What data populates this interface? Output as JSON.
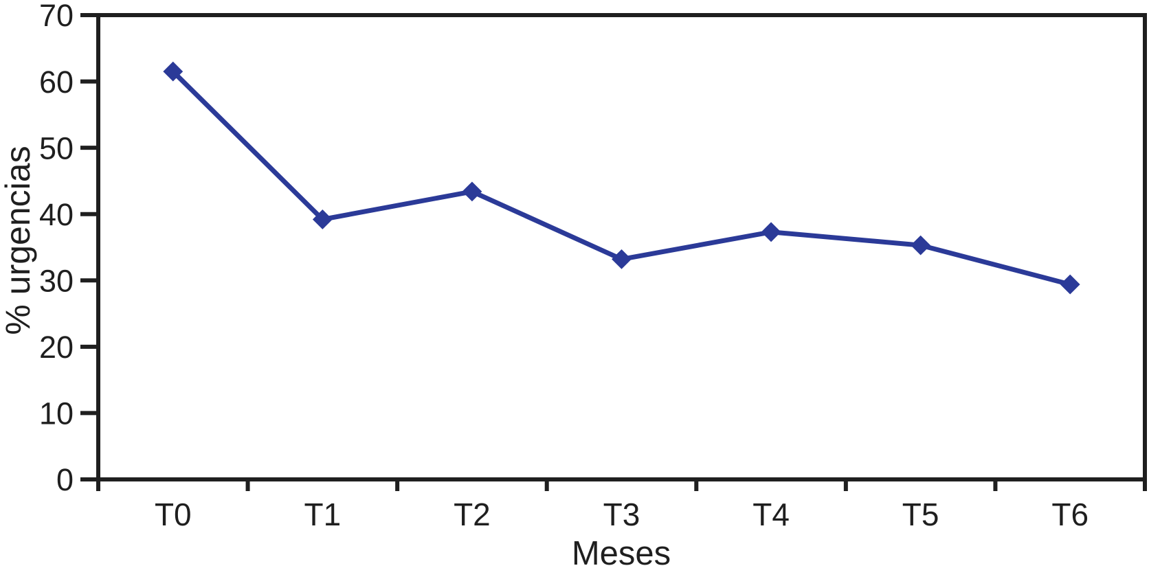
{
  "chart_data": {
    "type": "line",
    "categories": [
      "T0",
      "T1",
      "T2",
      "T3",
      "T4",
      "T5",
      "T6"
    ],
    "values": [
      61.5,
      39.2,
      43.4,
      33.2,
      37.3,
      35.3,
      29.4
    ],
    "series": [
      {
        "name": "% urgencias",
        "values": [
          61.5,
          39.2,
          43.4,
          33.2,
          37.3,
          35.3,
          29.4
        ]
      }
    ],
    "title": "",
    "xlabel": "Meses",
    "ylabel": "% urgencias",
    "ylim": [
      0,
      70
    ],
    "y_tick_labels": [
      "0",
      "10",
      "20",
      "30",
      "40",
      "50",
      "60",
      "70"
    ],
    "y_tick_step": 10,
    "grid": "off",
    "legend_position": "none",
    "marker": "diamond",
    "line_color": "#2b3a98",
    "axis_color": "#1f1f1f",
    "background_color": "#ffffff"
  }
}
